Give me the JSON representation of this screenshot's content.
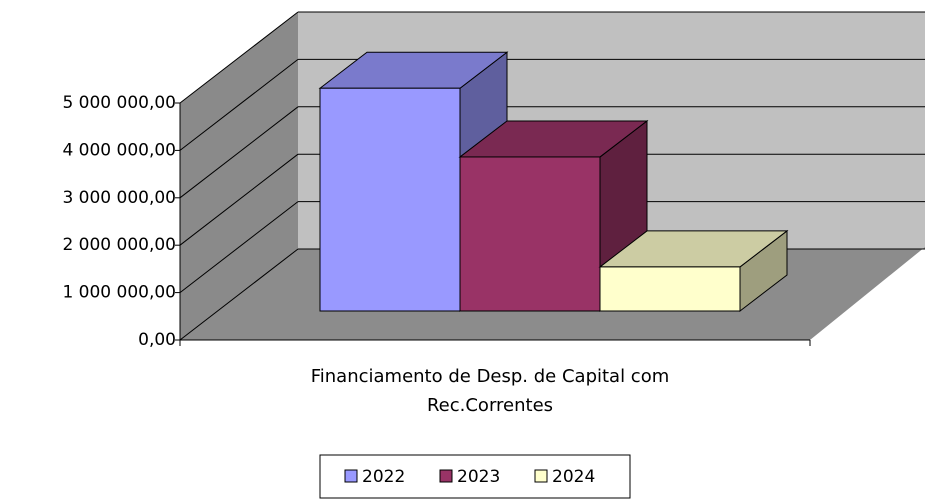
{
  "chart_data": {
    "type": "bar3d",
    "categories": [
      "Financiamento de Desp. de Capital com Rec.Correntes"
    ],
    "series": [
      {
        "name": "2022",
        "color": "#9999ff",
        "values": [
          4700000
        ]
      },
      {
        "name": "2023",
        "color": "#993366",
        "values": [
          3250000
        ]
      },
      {
        "name": "2024",
        "color": "#ffffcc",
        "values": [
          930000
        ]
      }
    ],
    "ylim": [
      0,
      5000000
    ],
    "yticks": [
      {
        "value": 0,
        "label": "0,00"
      },
      {
        "value": 1000000,
        "label": "1 000 000,00"
      },
      {
        "value": 2000000,
        "label": "2 000 000,00"
      },
      {
        "value": 3000000,
        "label": "3 000 000,00"
      },
      {
        "value": 4000000,
        "label": "4 000 000,00"
      },
      {
        "value": 5000000,
        "label": "5 000 000,00"
      }
    ],
    "grid": true,
    "legend": "bottom"
  }
}
